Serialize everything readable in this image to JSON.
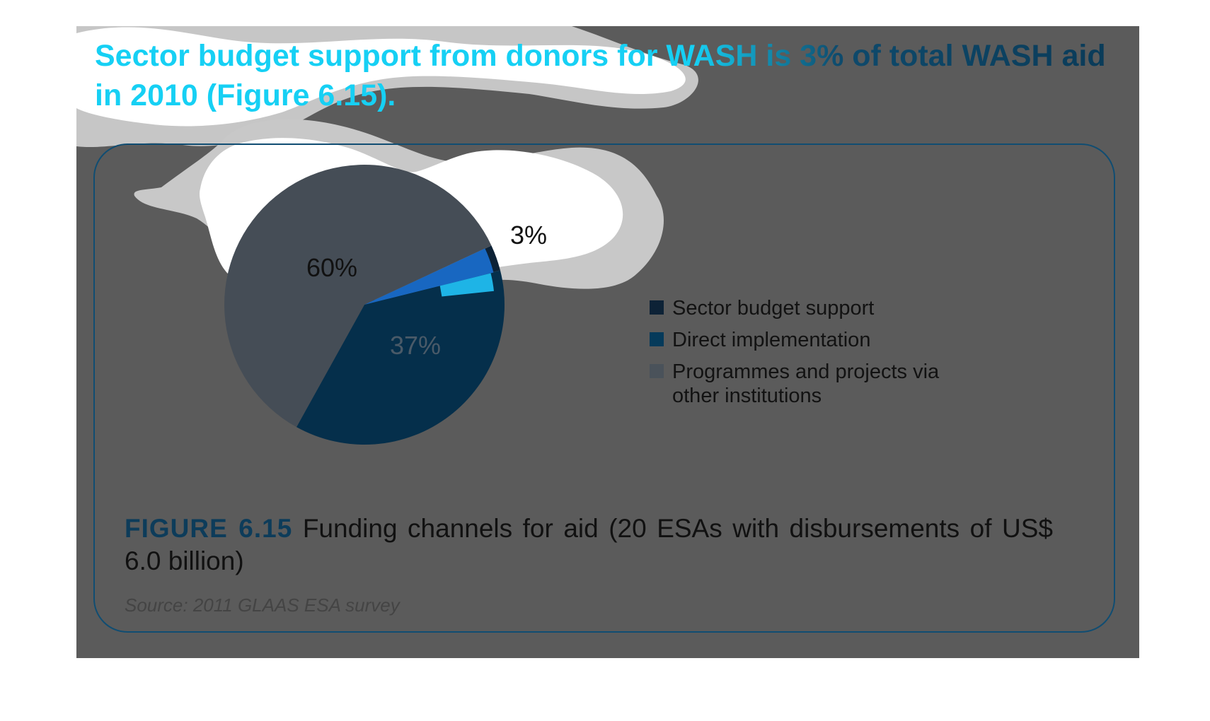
{
  "headline": "Sector budget support from donors for WASH is 3% of total WASH aid in 2010 (Figure 6.15).",
  "figure": {
    "number": "FIGURE 6.15",
    "caption": "Funding channels for aid (20 ESAs with disbursements of US$ 6.0 billion)",
    "source": "Source: 2011 GLAAS ESA survey"
  },
  "colors": {
    "slide_background": "#5b5b5b",
    "headline_cyan": "#16d0f4",
    "headline_navy": "#0a3a57",
    "frame_border": "#104d72"
  },
  "chart_data": {
    "type": "pie",
    "title": "",
    "series": [
      {
        "name": "Sector budget support",
        "value": 3,
        "label": "3%",
        "color": "#0d2236"
      },
      {
        "name": "Direct implementation",
        "value": 37,
        "label": "37%",
        "color": "#052f4b"
      },
      {
        "name": "Programmes and projects via other institutions",
        "value": 60,
        "label": "60%",
        "color": "#454d56"
      }
    ],
    "legend": {
      "position": "right",
      "items": [
        {
          "label": "Sector budget support",
          "color": "#0d2236"
        },
        {
          "label": "Direct implementation",
          "color": "#053a5a"
        },
        {
          "label": "Programmes and projects via other institutions",
          "color": "#4a525a"
        }
      ]
    }
  }
}
